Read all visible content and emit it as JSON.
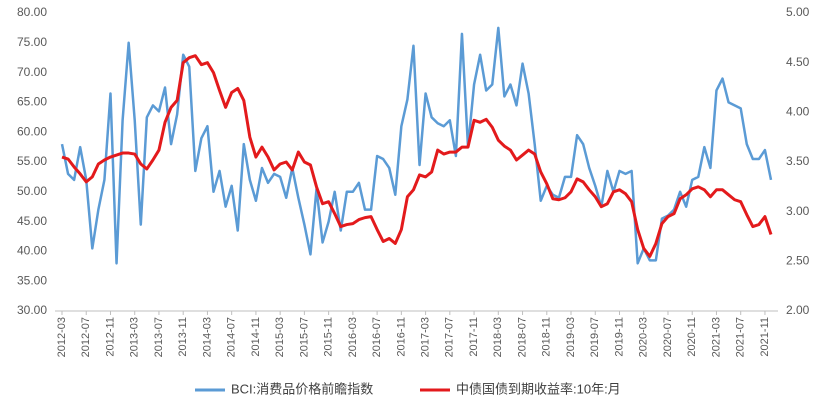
{
  "chart_data": {
    "type": "line",
    "categories": [
      "2012-03",
      null,
      null,
      null,
      "2012-07",
      null,
      null,
      null,
      "2012-11",
      null,
      null,
      null,
      "2013-03",
      null,
      null,
      null,
      "2013-07",
      null,
      null,
      null,
      "2013-11",
      null,
      null,
      null,
      "2014-03",
      null,
      null,
      null,
      "2014-07",
      null,
      null,
      null,
      "2014-11",
      null,
      null,
      null,
      "2015-03",
      null,
      null,
      null,
      "2015-07",
      null,
      null,
      null,
      "2015-11",
      null,
      null,
      null,
      "2016-03",
      null,
      null,
      null,
      "2016-07",
      null,
      null,
      null,
      "2016-11",
      null,
      null,
      null,
      "2017-03",
      null,
      null,
      null,
      "2017-07",
      null,
      null,
      null,
      "2017-11",
      null,
      null,
      null,
      "2018-03",
      null,
      null,
      null,
      "2018-07",
      null,
      null,
      null,
      "2018-11",
      null,
      null,
      null,
      "2019-03",
      null,
      null,
      null,
      "2019-07",
      null,
      null,
      null,
      "2019-11",
      null,
      null,
      null,
      "2020-03",
      null,
      null,
      null,
      "2020-07",
      null,
      null,
      null,
      "2020-11",
      null,
      null,
      null,
      "2021-03",
      null,
      null,
      null,
      "2021-07",
      null,
      null,
      null,
      "2021-11",
      null
    ],
    "series": [
      {
        "name": "BCI:消费品价格前瞻指数",
        "color": "#5b9bd5",
        "axis": "y",
        "values": [
          58,
          53,
          52,
          57.5,
          52,
          40.5,
          47,
          52,
          66.5,
          38,
          62,
          75,
          62,
          44.5,
          62.5,
          64.5,
          63.5,
          67.5,
          58,
          63,
          73,
          71,
          53.5,
          59,
          61,
          50,
          53.5,
          47.5,
          51,
          43.5,
          58,
          52,
          48.5,
          54,
          51.5,
          53,
          52.5,
          49,
          54,
          49,
          44.5,
          39.5,
          50.5,
          41.5,
          45,
          50,
          43.5,
          50,
          50,
          51.5,
          47,
          47,
          56,
          55.5,
          54,
          49.5,
          61,
          65.5,
          74.5,
          54.5,
          66.5,
          62.5,
          61.5,
          61,
          62,
          56,
          76.5,
          57.5,
          68,
          73,
          67,
          68,
          77.5,
          66,
          68,
          64.5,
          71.5,
          66.5,
          58,
          48.5,
          51,
          49.5,
          49,
          52.5,
          52.5,
          59.5,
          58,
          54,
          51,
          47.5,
          53.5,
          50,
          53.5,
          53,
          53.5,
          38,
          40.5,
          38.5,
          38.5,
          45.5,
          46,
          47,
          50,
          47.5,
          52,
          52.5,
          57.5,
          54,
          67,
          69,
          65,
          64.5,
          64,
          58,
          55.5,
          55.5,
          57,
          52
        ]
      },
      {
        "name": "中债国债到期收益率:10年:月",
        "color": "#e31a1c",
        "axis": "y2",
        "values": [
          3.55,
          3.53,
          3.45,
          3.38,
          3.3,
          3.35,
          3.48,
          3.52,
          3.55,
          3.57,
          3.59,
          3.59,
          3.58,
          3.48,
          3.43,
          3.52,
          3.62,
          3.9,
          4.05,
          4.12,
          4.5,
          4.55,
          4.57,
          4.48,
          4.5,
          4.4,
          4.22,
          4.05,
          4.2,
          4.24,
          4.12,
          3.75,
          3.55,
          3.65,
          3.55,
          3.42,
          3.48,
          3.5,
          3.42,
          3.6,
          3.5,
          3.47,
          3.25,
          3.08,
          3.1,
          2.98,
          2.85,
          2.87,
          2.88,
          2.92,
          2.94,
          2.95,
          2.82,
          2.7,
          2.73,
          2.68,
          2.82,
          3.15,
          3.22,
          3.37,
          3.35,
          3.4,
          3.62,
          3.58,
          3.6,
          3.6,
          3.65,
          3.65,
          3.92,
          3.9,
          3.93,
          3.85,
          3.72,
          3.66,
          3.62,
          3.52,
          3.57,
          3.62,
          3.58,
          3.4,
          3.28,
          3.13,
          3.12,
          3.14,
          3.2,
          3.33,
          3.3,
          3.22,
          3.15,
          3.05,
          3.08,
          3.2,
          3.22,
          3.18,
          3.1,
          2.82,
          2.63,
          2.55,
          2.68,
          2.88,
          2.95,
          2.98,
          3.13,
          3.17,
          3.23,
          3.25,
          3.22,
          3.15,
          3.22,
          3.22,
          3.17,
          3.12,
          3.1,
          2.97,
          2.85,
          2.87,
          2.95,
          2.77
        ]
      }
    ],
    "ylim": [
      30,
      80
    ],
    "yticks": [
      {
        "value": 30,
        "label": "30.00"
      },
      {
        "value": 35,
        "label": "35.00"
      },
      {
        "value": 40,
        "label": "40.00"
      },
      {
        "value": 45,
        "label": "45.00"
      },
      {
        "value": 50,
        "label": "50.00"
      },
      {
        "value": 55,
        "label": "55.00"
      },
      {
        "value": 60,
        "label": "60.00"
      },
      {
        "value": 65,
        "label": "65.00"
      },
      {
        "value": 70,
        "label": "70.00"
      },
      {
        "value": 75,
        "label": "75.00"
      },
      {
        "value": 80,
        "label": "80.00"
      }
    ],
    "y2lim": [
      2,
      5
    ],
    "y2ticks": [
      {
        "value": 2,
        "label": "2.00"
      },
      {
        "value": 2.5,
        "label": "2.50"
      },
      {
        "value": 3,
        "label": "3.00"
      },
      {
        "value": 3.5,
        "label": "3.50"
      },
      {
        "value": 4,
        "label": "4.00"
      },
      {
        "value": 4.5,
        "label": "4.50"
      },
      {
        "value": 5,
        "label": "5.00"
      }
    ],
    "grid": false,
    "legend": "bottom"
  }
}
